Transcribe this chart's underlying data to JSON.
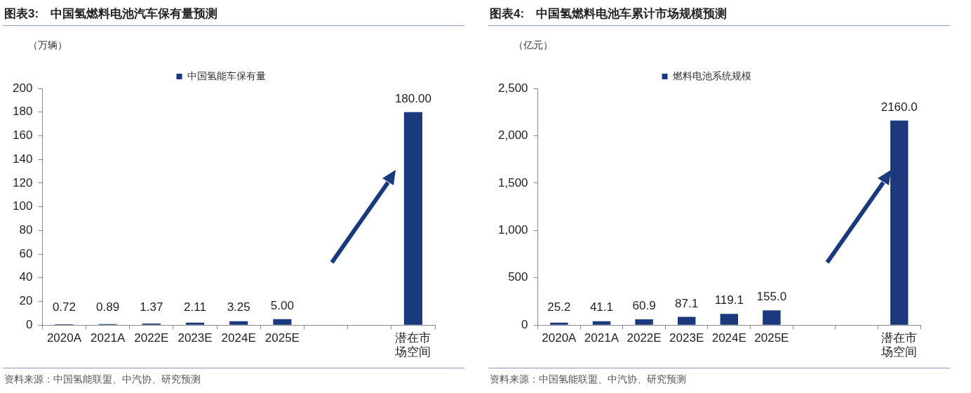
{
  "chart_data": [
    {
      "type": "bar",
      "title": "图表3:　中国氢燃料电池汽车保有量预测",
      "ylabel": "（万辆）",
      "categories": [
        "2020A",
        "2021A",
        "2022E",
        "2023E",
        "2024E",
        "2025E",
        null,
        null,
        "潜在市场空间"
      ],
      "series": [
        {
          "name": "中国氢能车保有量",
          "color": "#1b3a7d",
          "values": [
            0.72,
            0.89,
            1.37,
            2.11,
            3.25,
            5.0,
            null,
            null,
            180
          ],
          "value_labels": [
            "0.72",
            "0.89",
            "1.37",
            "2.11",
            "3.25",
            "5.00",
            null,
            null,
            "180.00"
          ]
        }
      ],
      "ylim": [
        0,
        200
      ],
      "yticks": [
        0,
        20,
        40,
        60,
        80,
        100,
        120,
        140,
        160,
        180,
        200
      ],
      "grid": false,
      "legend": "top",
      "annotations": [
        "资料来源：中国氢能联盟、中汽协、研究预测"
      ]
    },
    {
      "type": "bar",
      "title": "图表4:　中国氢燃料电池车累计市场规模预测",
      "ylabel": "（亿元）",
      "categories": [
        "2020A",
        "2021A",
        "2022E",
        "2023E",
        "2024E",
        "2025E",
        null,
        null,
        "潜在市场空间"
      ],
      "series": [
        {
          "name": "燃料电池系统规模",
          "color": "#1b3a7d",
          "values": [
            25.2,
            41.1,
            60.9,
            87.1,
            119.1,
            155.0,
            null,
            null,
            2160.0
          ],
          "value_labels": [
            "25.2",
            "41.1",
            "60.9",
            "87.1",
            "119.1",
            "155.0",
            null,
            null,
            "2160.0"
          ]
        }
      ],
      "ylim": [
        0,
        2500
      ],
      "yticks": [
        0,
        {
          "value": 500,
          "label": "500"
        },
        {
          "value": 1000,
          "label": "1,000"
        },
        {
          "value": 1500,
          "label": "1,500"
        },
        {
          "value": 2000,
          "label": "2,000"
        },
        {
          "value": 2500,
          "label": "2,500"
        }
      ],
      "grid": false,
      "legend": "top",
      "annotations": [
        "资料来源：中国氢能联盟、中汽协、研究预测"
      ]
    }
  ]
}
